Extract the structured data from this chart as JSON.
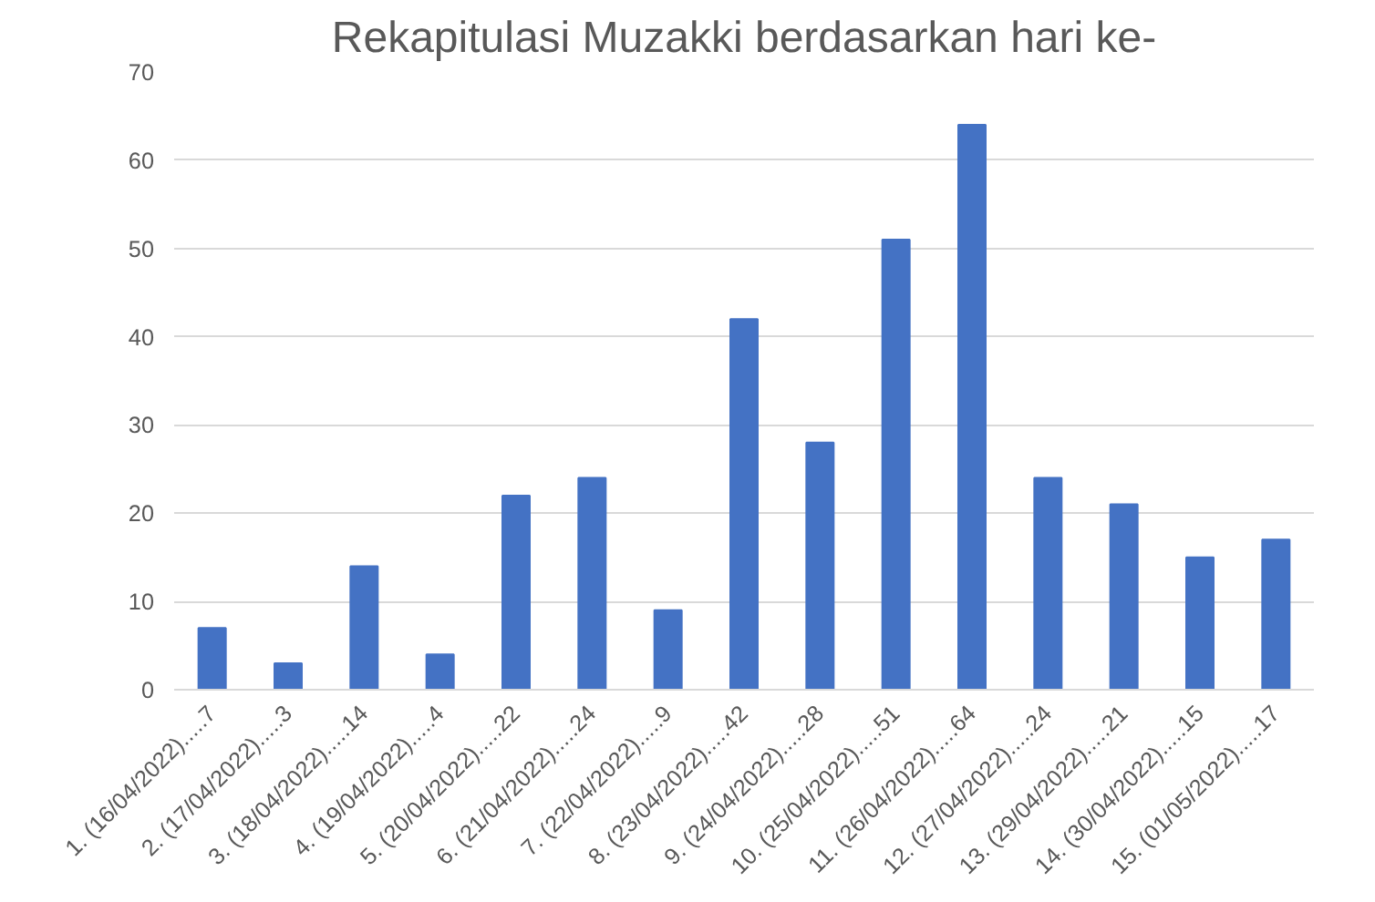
{
  "chart_data": {
    "type": "bar",
    "title": "Rekapitulasi Muzakki berdasarkan hari ke-",
    "categories": [
      "1. (16/04/2022).....7",
      "2. (17/04/2022).....3",
      "3. (18/04/2022).....14",
      "4. (19/04/2022).....4",
      "5. (20/04/2022).....22",
      "6. (21/04/2022).....24",
      "7. (22/04/2022).....9",
      "8. (23/04/2022).....42",
      "9. (24/04/2022).....28",
      "10. (25/04/2022).....51",
      "11. (26/04/2022).....64",
      "12. (27/04/2022).....24",
      "13. (29/04/2022).....21",
      "14. (30/04/2022).....15",
      "15. (01/05/2022).....17"
    ],
    "values": [
      7,
      3,
      14,
      4,
      22,
      24,
      9,
      42,
      28,
      51,
      64,
      24,
      21,
      15,
      17
    ],
    "color": "#4472c4",
    "ylim": [
      0,
      70
    ],
    "yticks": [
      0,
      10,
      20,
      30,
      40,
      50,
      60,
      70
    ],
    "grid": "y"
  }
}
